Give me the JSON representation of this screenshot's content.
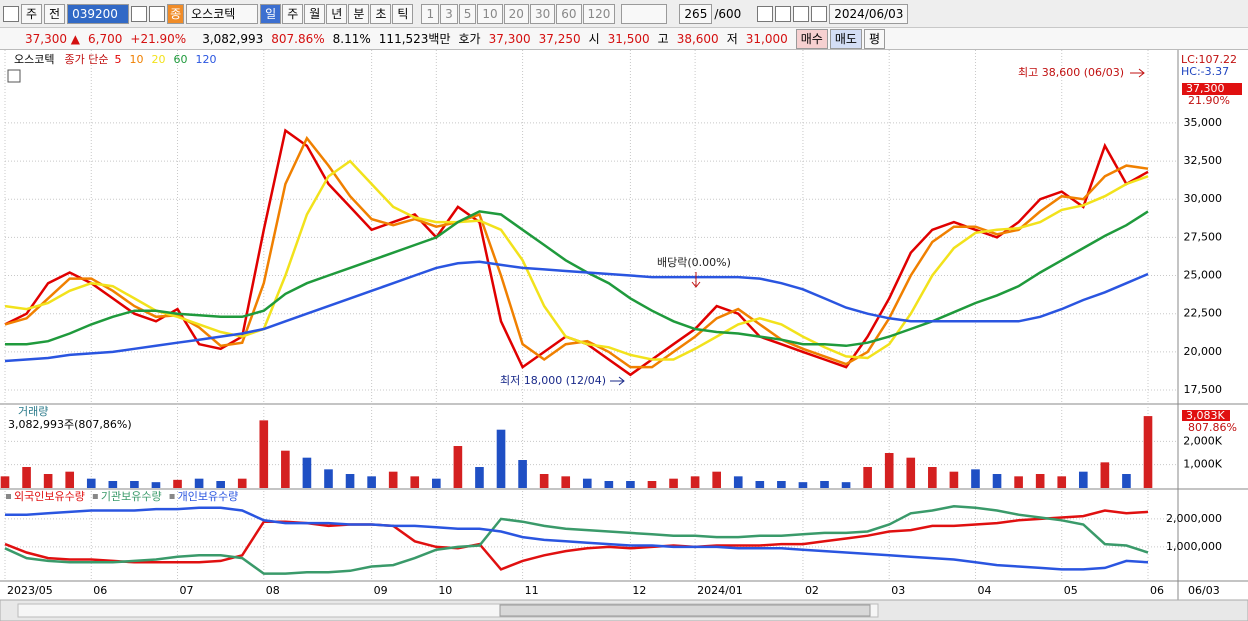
{
  "toolbar": {
    "period": "주",
    "prev": "전",
    "code": "039200",
    "badge": "종",
    "name": "오스코텍",
    "units": [
      "일",
      "주",
      "월",
      "년",
      "분",
      "초",
      "틱"
    ],
    "intervals": [
      "1",
      "3",
      "5",
      "10",
      "20",
      "30",
      "60",
      "120"
    ],
    "count": "265",
    "max": "/600",
    "date": "2024/06/03"
  },
  "quote": {
    "price": "37,300 ▲",
    "change": "6,700",
    "rate": "+21.90%",
    "volume": "3,082,993",
    "vol_ratio": "807.86%",
    "turnover": "8.11%",
    "amount": "111,523백만",
    "ask_label": "호가",
    "ask": "37,300",
    "bid": "37,250",
    "open_label": "시",
    "open": "31,500",
    "high_label": "고",
    "high": "38,600",
    "low_label": "저",
    "low": "31,000",
    "buy": "매수",
    "sell": "매도",
    "eval": "평"
  },
  "chart_data": [
    {
      "type": "line",
      "legend_title": "오스코텍",
      "legend_label": "종가 단순",
      "series": [
        {
          "name": "5",
          "color": "#e00000",
          "values": [
            21800,
            22500,
            24500,
            25200,
            24500,
            23500,
            22500,
            22000,
            22800,
            20500,
            20200,
            21000,
            28000,
            34500,
            33500,
            31000,
            29500,
            28000,
            28500,
            29000,
            27500,
            29500,
            28500,
            22000,
            19000,
            20000,
            21000,
            20500,
            19500,
            18500,
            19500,
            20500,
            21500,
            23000,
            22500,
            21000,
            20500,
            20000,
            19500,
            19000,
            21000,
            23500,
            26500,
            28000,
            28500,
            28000,
            27500,
            28500,
            30000,
            30500,
            29500,
            33500,
            31000,
            31800
          ]
        },
        {
          "name": "10",
          "color": "#f08000",
          "values": [
            21800,
            22200,
            23500,
            24800,
            24800,
            24000,
            23000,
            22300,
            22400,
            21600,
            20400,
            20600,
            24500,
            31000,
            34000,
            32200,
            30200,
            28700,
            28300,
            28700,
            28200,
            28500,
            29000,
            25000,
            20500,
            19500,
            20500,
            20700,
            20000,
            19000,
            19000,
            20000,
            21000,
            22200,
            22800,
            21800,
            20800,
            20200,
            19700,
            19200,
            20000,
            22200,
            25000,
            27200,
            28200,
            28200,
            27700,
            28000,
            29200,
            30200,
            30000,
            31500,
            32200,
            32000
          ]
        },
        {
          "name": "20",
          "color": "#f2e21c",
          "values": [
            23000,
            22800,
            23200,
            24000,
            24500,
            24300,
            23500,
            22700,
            22300,
            21800,
            21300,
            21000,
            21500,
            25000,
            29000,
            31500,
            32500,
            31000,
            29500,
            28800,
            28500,
            28500,
            28600,
            28000,
            26000,
            23000,
            21000,
            20500,
            20300,
            19800,
            19500,
            19500,
            20200,
            21000,
            21800,
            22200,
            21800,
            21000,
            20300,
            19700,
            19600,
            20500,
            22500,
            25000,
            26800,
            27800,
            28000,
            28100,
            28500,
            29300,
            29600,
            30200,
            31000,
            31500
          ]
        },
        {
          "name": "60",
          "color": "#1f9a3c",
          "values": [
            20500,
            20500,
            20700,
            21200,
            21800,
            22300,
            22700,
            22700,
            22500,
            22400,
            22300,
            22300,
            22700,
            23800,
            24500,
            25000,
            25500,
            26000,
            26500,
            27000,
            27500,
            28500,
            29200,
            29000,
            28000,
            27000,
            26000,
            25200,
            24500,
            23500,
            22700,
            22000,
            21500,
            21300,
            21200,
            21000,
            20800,
            20500,
            20500,
            20400,
            20600,
            21000,
            21500,
            22000,
            22600,
            23200,
            23700,
            24300,
            25200,
            26000,
            26800,
            27600,
            28300,
            29200
          ]
        },
        {
          "name": "120",
          "color": "#2a55e0",
          "values": [
            19400,
            19500,
            19600,
            19800,
            19900,
            20000,
            20200,
            20400,
            20600,
            20800,
            21000,
            21200,
            21500,
            22000,
            22500,
            23000,
            23500,
            24000,
            24500,
            25000,
            25500,
            25800,
            25900,
            25700,
            25500,
            25400,
            25300,
            25200,
            25100,
            25000,
            24900,
            24900,
            24900,
            24900,
            24900,
            24800,
            24500,
            24100,
            23500,
            22900,
            22500,
            22200,
            22000,
            22000,
            22000,
            22000,
            22000,
            22000,
            22300,
            22800,
            23400,
            23900,
            24500,
            25100
          ]
        }
      ],
      "ylim": [
        16650,
        39580
      ],
      "yticks": [
        {
          "value": 17500,
          "label": "17,500"
        },
        {
          "value": 20000,
          "label": "20,000"
        },
        {
          "value": 22500,
          "label": "22,500"
        },
        {
          "value": 25000,
          "label": "25,000"
        },
        {
          "value": 27500,
          "label": "27,500"
        },
        {
          "value": 30000,
          "label": "30,000"
        },
        {
          "value": 32500,
          "label": "32,500"
        },
        {
          "value": 35000,
          "label": "35,000"
        }
      ],
      "annotations": [
        "최고 38,600 (06/03)",
        "최저 18,000 (12/04)",
        "배당락(0.00%)"
      ],
      "lc": "LC:107.22",
      "hc": "HC:-3.37",
      "last_price": "37,300",
      "last_rate": "21.90%"
    },
    {
      "type": "bar",
      "title": "거래량",
      "subtitle": "3,082,993주(807,86%)",
      "values": [
        500000,
        900000,
        600000,
        700000,
        400000,
        300000,
        300000,
        250000,
        350000,
        400000,
        300000,
        400000,
        2900000,
        1600000,
        1300000,
        800000,
        600000,
        500000,
        700000,
        500000,
        400000,
        1800000,
        900000,
        2500000,
        1200000,
        600000,
        500000,
        400000,
        300000,
        300000,
        300000,
        400000,
        500000,
        700000,
        500000,
        300000,
        300000,
        250000,
        300000,
        250000,
        900000,
        1500000,
        1300000,
        900000,
        700000,
        800000,
        600000,
        500000,
        600000,
        500000,
        700000,
        1100000,
        600000,
        3082993
      ],
      "bar_colors": [
        "#d42020",
        "#d42020",
        "#d42020",
        "#d42020",
        "#1f4fc4",
        "#1f4fc4",
        "#1f4fc4",
        "#1f4fc4",
        "#d42020",
        "#1f4fc4",
        "#1f4fc4",
        "#d42020",
        "#d42020",
        "#d42020",
        "#1f4fc4",
        "#1f4fc4",
        "#1f4fc4",
        "#1f4fc4",
        "#d42020",
        "#d42020",
        "#1f4fc4",
        "#d42020",
        "#1f4fc4",
        "#1f4fc4",
        "#1f4fc4",
        "#d42020",
        "#d42020",
        "#1f4fc4",
        "#1f4fc4",
        "#1f4fc4",
        "#d42020",
        "#d42020",
        "#d42020",
        "#d42020",
        "#1f4fc4",
        "#1f4fc4",
        "#1f4fc4",
        "#1f4fc4",
        "#1f4fc4",
        "#1f4fc4",
        "#d42020",
        "#d42020",
        "#d42020",
        "#d42020",
        "#d42020",
        "#1f4fc4",
        "#1f4fc4",
        "#d42020",
        "#d42020",
        "#d42020",
        "#1f4fc4",
        "#d42020",
        "#1f4fc4",
        "#d42020"
      ],
      "ylim": [
        0,
        3430000
      ],
      "yticks": [
        {
          "value": 1000000,
          "label": "1,000K"
        },
        {
          "value": 2000000,
          "label": "2,000K"
        }
      ],
      "last_label": "3,083K",
      "last_rate": "807.86%"
    },
    {
      "type": "line",
      "categories": [
        "2023/05",
        null,
        null,
        null,
        "06",
        null,
        null,
        null,
        "07",
        null,
        null,
        null,
        "08",
        null,
        null,
        null,
        null,
        "09",
        null,
        null,
        "10",
        null,
        null,
        null,
        "11",
        null,
        null,
        null,
        null,
        "12",
        null,
        null,
        "2024/01",
        null,
        null,
        null,
        null,
        "02",
        null,
        null,
        null,
        "03",
        null,
        null,
        null,
        "04",
        null,
        null,
        null,
        "05",
        null,
        null,
        null,
        "06"
      ],
      "series": [
        {
          "name": "외국인보유수량",
          "color": "#e01010",
          "values": [
            1100000,
            800000,
            600000,
            550000,
            550000,
            500000,
            450000,
            450000,
            450000,
            450000,
            500000,
            700000,
            1900000,
            1900000,
            1850000,
            1750000,
            1800000,
            1800000,
            1750000,
            1200000,
            1000000,
            950000,
            1100000,
            200000,
            500000,
            700000,
            850000,
            950000,
            1000000,
            950000,
            1000000,
            1050000,
            1000000,
            1050000,
            1050000,
            1050000,
            1100000,
            1100000,
            1200000,
            1300000,
            1400000,
            1550000,
            1600000,
            1750000,
            1750000,
            1800000,
            1850000,
            1950000,
            2000000,
            2050000,
            2100000,
            2300000,
            2200000,
            2250000
          ]
        },
        {
          "name": "기관보유수량",
          "color": "#3a9a6a",
          "values": [
            950000,
            600000,
            500000,
            450000,
            450000,
            450000,
            500000,
            550000,
            650000,
            700000,
            700000,
            600000,
            50000,
            50000,
            100000,
            100000,
            150000,
            300000,
            350000,
            600000,
            900000,
            1000000,
            1050000,
            2000000,
            1900000,
            1750000,
            1650000,
            1600000,
            1550000,
            1500000,
            1450000,
            1400000,
            1400000,
            1350000,
            1350000,
            1400000,
            1400000,
            1450000,
            1500000,
            1500000,
            1550000,
            1800000,
            2200000,
            2300000,
            2450000,
            2400000,
            2300000,
            2150000,
            2050000,
            1950000,
            1800000,
            1100000,
            1050000,
            800000
          ]
        },
        {
          "name": "개인보유수량",
          "color": "#2a55e0",
          "values": [
            2150000,
            2150000,
            2200000,
            2250000,
            2300000,
            2300000,
            2300000,
            2350000,
            2350000,
            2400000,
            2400000,
            2300000,
            1950000,
            1850000,
            1850000,
            1850000,
            1800000,
            1800000,
            1750000,
            1750000,
            1700000,
            1650000,
            1650000,
            1550000,
            1350000,
            1250000,
            1200000,
            1150000,
            1100000,
            1050000,
            1050000,
            1000000,
            1000000,
            1000000,
            950000,
            950000,
            950000,
            900000,
            850000,
            800000,
            750000,
            700000,
            650000,
            600000,
            550000,
            450000,
            350000,
            300000,
            250000,
            200000,
            200000,
            250000,
            500000,
            450000
          ]
        }
      ],
      "ylim": [
        -180000,
        2960000
      ],
      "yticks": [
        {
          "value": 1000000,
          "label": "1,000,000"
        },
        {
          "value": 2000000,
          "label": "2,000,000"
        }
      ],
      "x_end_label": "06/03"
    }
  ]
}
